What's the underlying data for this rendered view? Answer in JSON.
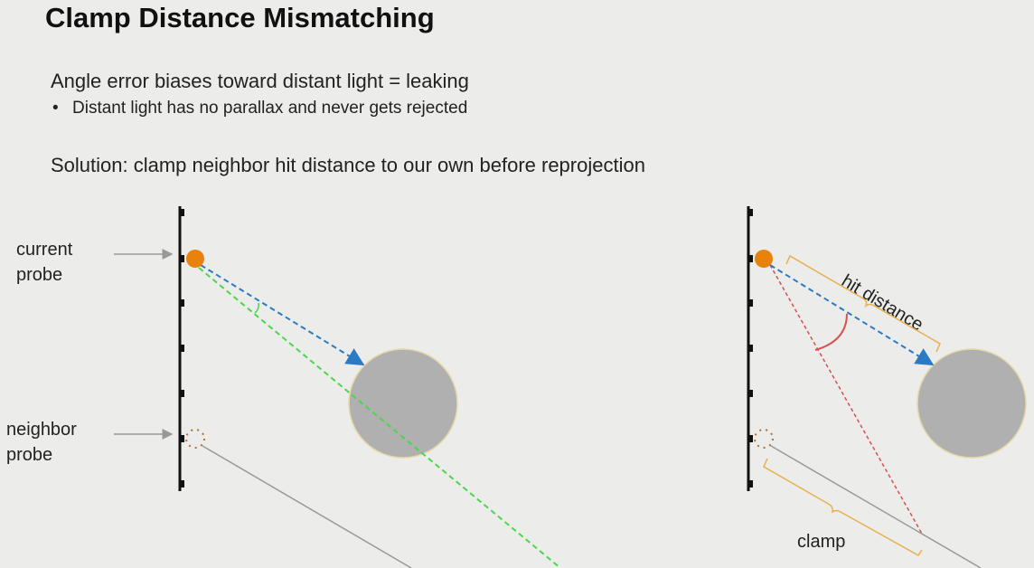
{
  "slide": {
    "title": "Clamp Distance Mismatching",
    "line1": "Angle error biases toward distant light = leaking",
    "bullet1": "Distant light has no parallax and never gets rejected",
    "line2": "Solution: clamp neighbor hit distance to our own before reprojection"
  },
  "diagram": {
    "current_probe_label": [
      "current",
      "probe"
    ],
    "neighbor_probe_label": [
      "neighbor",
      "probe"
    ],
    "hit_distance_label": "hit distance",
    "clamp_label": "clamp",
    "colors": {
      "probe": "#e8820c",
      "ray_blue": "#2a7bc4",
      "ray_green": "#4cd64c",
      "ray_red": "#d85050",
      "bracket": "#e8b050",
      "occluder": "#b0b0b0"
    }
  }
}
